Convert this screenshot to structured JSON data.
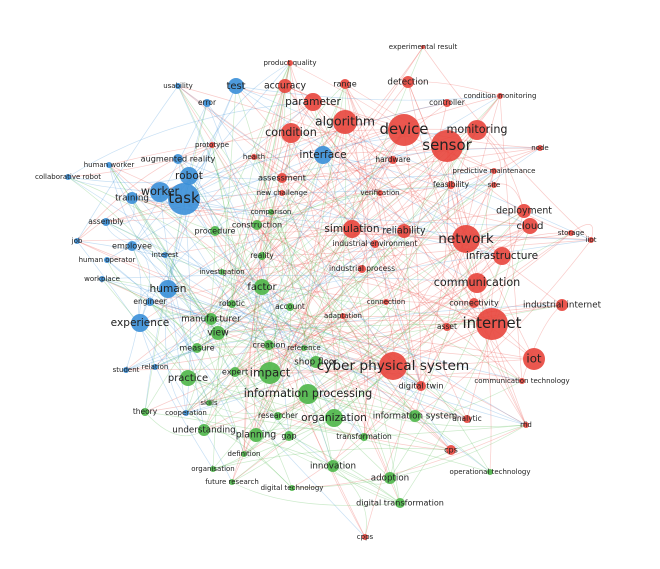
{
  "nodes": [
    {
      "label": "product quality",
      "color": "#e8453c"
    },
    {
      "label": "experimental result",
      "color": "#e8453c"
    },
    {
      "label": "accuracy",
      "color": "#e8453c"
    },
    {
      "label": "range",
      "color": "#e8453c"
    },
    {
      "label": "detection",
      "color": "#e8453c"
    },
    {
      "label": "condition monitoring",
      "color": "#e8453c"
    },
    {
      "label": "controller",
      "color": "#e8453c"
    },
    {
      "label": "parameter",
      "color": "#e8453c"
    },
    {
      "label": "algorithm",
      "color": "#e8453c"
    },
    {
      "label": "device",
      "color": "#e8453c"
    },
    {
      "label": "monitoring",
      "color": "#e8453c"
    },
    {
      "label": "condition",
      "color": "#e8453c"
    },
    {
      "label": "sensor",
      "color": "#e8453c"
    },
    {
      "label": "node",
      "color": "#e8453c"
    },
    {
      "label": "health",
      "color": "#e8453c"
    },
    {
      "label": "hardware",
      "color": "#e8453c"
    },
    {
      "label": "predictive maintenance",
      "color": "#e8453c"
    },
    {
      "label": "assessment",
      "color": "#e8453c"
    },
    {
      "label": "feasibility",
      "color": "#e8453c"
    },
    {
      "label": "site",
      "color": "#e8453c"
    },
    {
      "label": "new challenge",
      "color": "#e8453c"
    },
    {
      "label": "verification",
      "color": "#e8453c"
    },
    {
      "label": "deployment",
      "color": "#e8453c"
    },
    {
      "label": "cloud",
      "color": "#e8453c"
    },
    {
      "label": "storage",
      "color": "#e8453c"
    },
    {
      "label": "iiot",
      "color": "#e8453c"
    },
    {
      "label": "simulation",
      "color": "#e8453c"
    },
    {
      "label": "reliability",
      "color": "#e8453c"
    },
    {
      "label": "network",
      "color": "#e8453c"
    },
    {
      "label": "industrial environment",
      "color": "#e8453c"
    },
    {
      "label": "infrastructure",
      "color": "#e8453c"
    },
    {
      "label": "industrial process",
      "color": "#e8453c"
    },
    {
      "label": "communication",
      "color": "#e8453c"
    },
    {
      "label": "connectivity",
      "color": "#e8453c"
    },
    {
      "label": "industrial internet",
      "color": "#e8453c"
    },
    {
      "label": "connection",
      "color": "#e8453c"
    },
    {
      "label": "adaptation",
      "color": "#e8453c"
    },
    {
      "label": "internet",
      "color": "#e8453c"
    },
    {
      "label": "asset",
      "color": "#e8453c"
    },
    {
      "label": "iot",
      "color": "#e8453c"
    },
    {
      "label": "cyber physical system",
      "color": "#e8453c"
    },
    {
      "label": "communication technology",
      "color": "#e8453c"
    },
    {
      "label": "digital twin",
      "color": "#e8453c"
    },
    {
      "label": "analytic",
      "color": "#e8453c"
    },
    {
      "label": "rfid",
      "color": "#e8453c"
    },
    {
      "label": "cps",
      "color": "#e8453c"
    },
    {
      "label": "cpps",
      "color": "#e8453c"
    },
    {
      "label": "prototype",
      "color": "#e8453c"
    },
    {
      "label": "usability",
      "color": "#3a8fd8"
    },
    {
      "label": "test",
      "color": "#3a8fd8"
    },
    {
      "label": "error",
      "color": "#3a8fd8"
    },
    {
      "label": "interface",
      "color": "#3a8fd8"
    },
    {
      "label": "human worker",
      "color": "#3a8fd8"
    },
    {
      "label": "collaborative robot",
      "color": "#3a8fd8"
    },
    {
      "label": "augmented reality",
      "color": "#3a8fd8"
    },
    {
      "label": "robot",
      "color": "#3a8fd8"
    },
    {
      "label": "worker",
      "color": "#3a8fd8"
    },
    {
      "label": "task",
      "color": "#3a8fd8"
    },
    {
      "label": "training",
      "color": "#3a8fd8"
    },
    {
      "label": "assembly",
      "color": "#3a8fd8"
    },
    {
      "label": "job",
      "color": "#3a8fd8"
    },
    {
      "label": "employee",
      "color": "#3a8fd8"
    },
    {
      "label": "interest",
      "color": "#3a8fd8"
    },
    {
      "label": "human operator",
      "color": "#3a8fd8"
    },
    {
      "label": "workplace",
      "color": "#3a8fd8"
    },
    {
      "label": "human",
      "color": "#3a8fd8"
    },
    {
      "label": "engineer",
      "color": "#3a8fd8"
    },
    {
      "label": "experience",
      "color": "#3a8fd8"
    },
    {
      "label": "student",
      "color": "#3a8fd8"
    },
    {
      "label": "relation",
      "color": "#3a8fd8"
    },
    {
      "label": "cooperation",
      "color": "#3a8fd8"
    },
    {
      "label": "procedure",
      "color": "#4cb648"
    },
    {
      "label": "construction",
      "color": "#4cb648"
    },
    {
      "label": "comparison",
      "color": "#4cb648"
    },
    {
      "label": "reality",
      "color": "#4cb648"
    },
    {
      "label": "investigation",
      "color": "#4cb648"
    },
    {
      "label": "factor",
      "color": "#4cb648"
    },
    {
      "label": "robotic",
      "color": "#4cb648"
    },
    {
      "label": "account",
      "color": "#4cb648"
    },
    {
      "label": "manufacturer",
      "color": "#4cb648"
    },
    {
      "label": "view",
      "color": "#4cb648"
    },
    {
      "label": "measure",
      "color": "#4cb648"
    },
    {
      "label": "creation",
      "color": "#4cb648"
    },
    {
      "label": "shop floor",
      "color": "#4cb648"
    },
    {
      "label": "practice",
      "color": "#4cb648"
    },
    {
      "label": "expert",
      "color": "#4cb648"
    },
    {
      "label": "impact",
      "color": "#4cb648"
    },
    {
      "label": "information processing",
      "color": "#4cb648"
    },
    {
      "label": "skills",
      "color": "#4cb648"
    },
    {
      "label": "theory",
      "color": "#4cb648"
    },
    {
      "label": "researcher",
      "color": "#4cb648"
    },
    {
      "label": "organization",
      "color": "#4cb648"
    },
    {
      "label": "information system",
      "color": "#4cb648"
    },
    {
      "label": "understanding",
      "color": "#4cb648"
    },
    {
      "label": "planning",
      "color": "#4cb648"
    },
    {
      "label": "gap",
      "color": "#4cb648"
    },
    {
      "label": "transformation",
      "color": "#4cb648"
    },
    {
      "label": "definition",
      "color": "#4cb648"
    },
    {
      "label": "innovation",
      "color": "#4cb648"
    },
    {
      "label": "organisation",
      "color": "#4cb648"
    },
    {
      "label": "adoption",
      "color": "#4cb648"
    },
    {
      "label": "future research",
      "color": "#4cb648"
    },
    {
      "label": "digital technology",
      "color": "#4cb648"
    },
    {
      "label": "digital transformation",
      "color": "#4cb648"
    },
    {
      "label": "operational technology",
      "color": "#4cb648"
    },
    {
      "label": "reference",
      "color": "#4cb648"
    }
  ]
}
